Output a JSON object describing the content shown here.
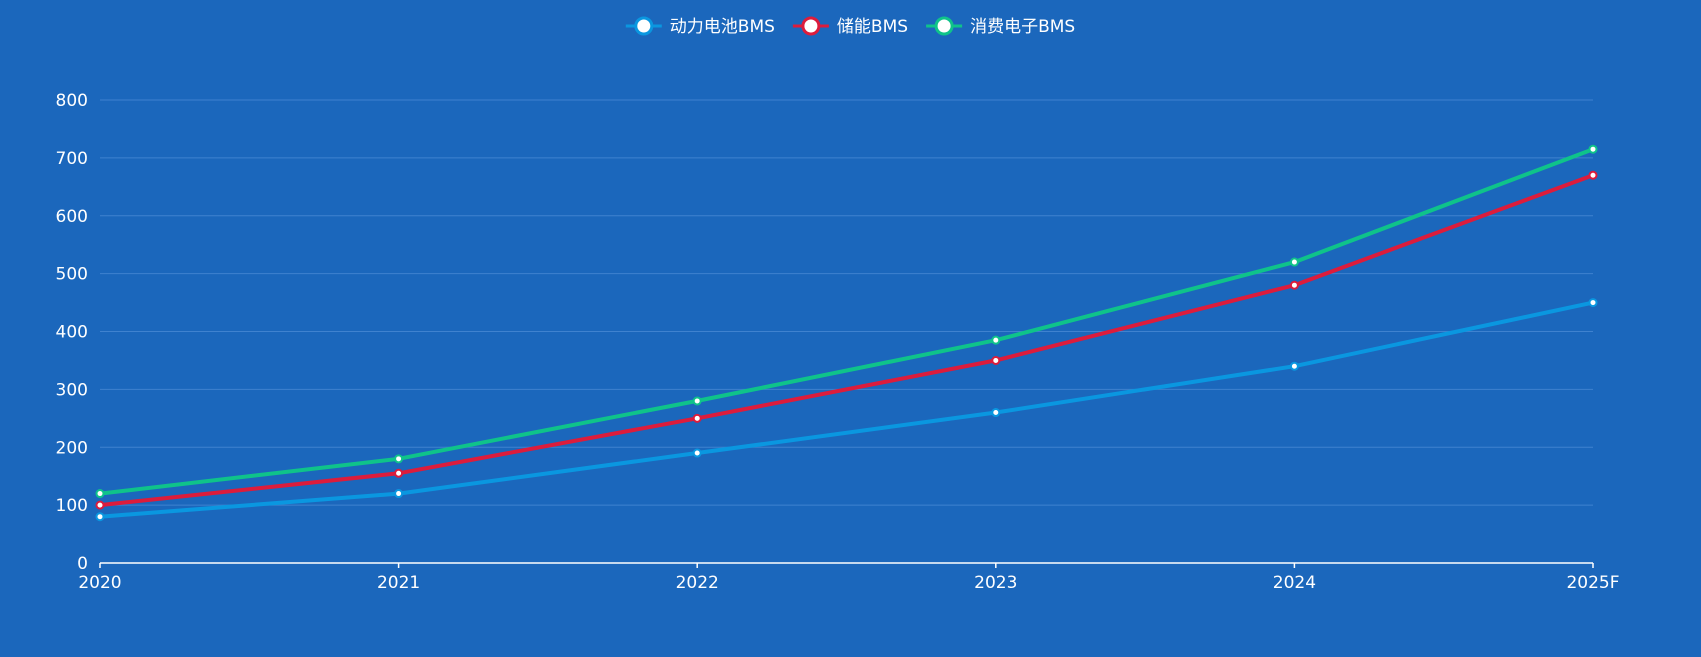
{
  "chart_data": {
    "type": "line",
    "categories": [
      "2020",
      "2021",
      "2022",
      "2023",
      "2024",
      "2025F"
    ],
    "series": [
      {
        "name": "动力电池BMS",
        "color": "#0a97e0",
        "values": [
          80,
          120,
          190,
          260,
          340,
          450
        ]
      },
      {
        "name": "储能BMS",
        "color": "#dc1c3c",
        "values": [
          100,
          155,
          250,
          350,
          480,
          670
        ]
      },
      {
        "name": "消费电子BMS",
        "color": "#0fc38a",
        "values": [
          120,
          180,
          280,
          385,
          520,
          715
        ]
      }
    ],
    "yticks": [
      0,
      100,
      200,
      300,
      400,
      500,
      600,
      700,
      800
    ],
    "ylim": [
      0,
      800
    ],
    "grid": true,
    "legend": "top-center",
    "background": "#1b67bc"
  }
}
